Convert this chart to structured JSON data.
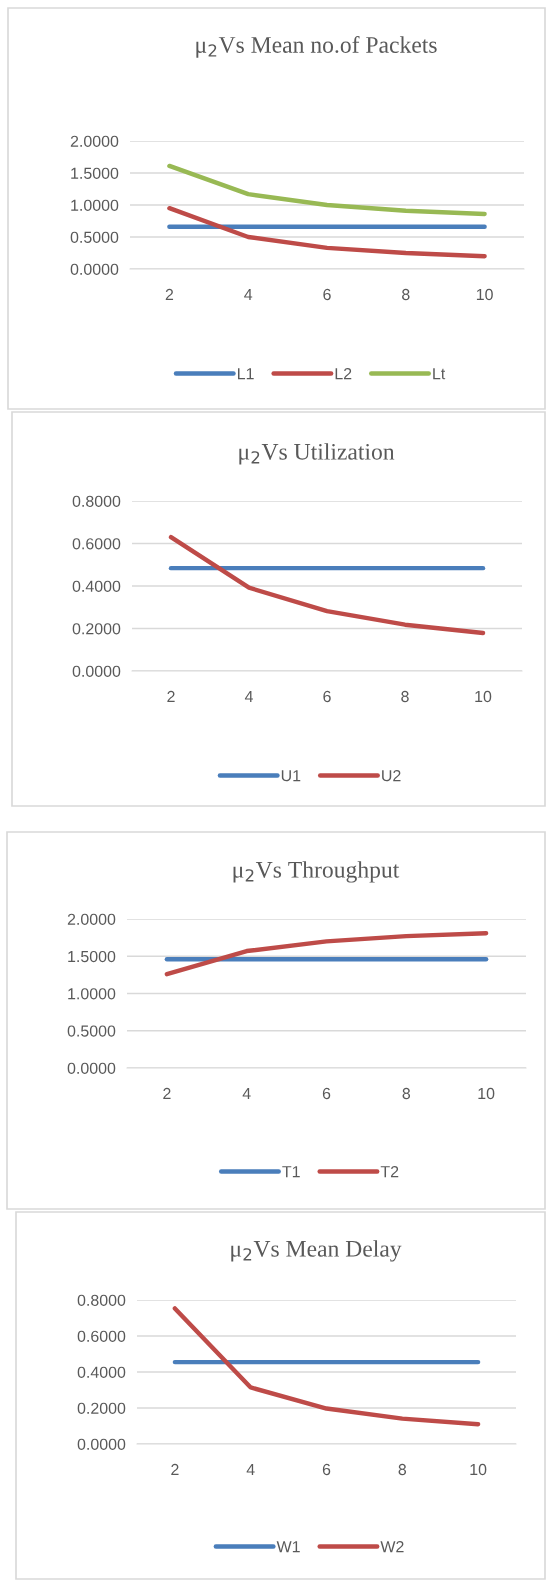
{
  "chart_data": [
    {
      "type": "line",
      "title": "μ$_{2}$Vs Mean no.of Packets",
      "categories": [
        "2",
        "4",
        "6",
        "8",
        "10"
      ],
      "ylim": [
        0,
        2
      ],
      "yticks": [
        {
          "value": 0,
          "label": "0.0000"
        },
        {
          "value": 0.5,
          "label": "0.5000"
        },
        {
          "value": 1,
          "label": "1.0000"
        },
        {
          "value": 1.5,
          "label": "1.5000"
        },
        {
          "value": 2,
          "label": "2.0000"
        }
      ],
      "grid": "y",
      "legend": "bottom",
      "marker": "none",
      "line_style": "solid",
      "series": [
        {
          "name": "L1",
          "color": "#4a7ebb",
          "values": [
            0.66,
            0.66,
            0.66,
            0.66,
            0.66
          ]
        },
        {
          "name": "L2",
          "color": "#be4b48",
          "values": [
            0.95,
            0.5,
            0.33,
            0.25,
            0.2
          ]
        },
        {
          "name": "Lt",
          "color": "#98b954",
          "values": [
            1.61,
            1.17,
            1.0,
            0.91,
            0.86
          ]
        }
      ]
    },
    {
      "type": "line",
      "title": "μ$_{2}$Vs Utilization",
      "categories": [
        "2",
        "4",
        "6",
        "8",
        "10"
      ],
      "ylim": [
        0,
        0.8
      ],
      "yticks": [
        {
          "value": 0,
          "label": "0.0000"
        },
        {
          "value": 0.2,
          "label": "0.2000"
        },
        {
          "value": 0.4,
          "label": "0.4000"
        },
        {
          "value": 0.6,
          "label": "0.6000"
        },
        {
          "value": 0.8,
          "label": "0.8000"
        }
      ],
      "grid": "y",
      "legend": "bottom",
      "marker": "none",
      "line_style": "solid",
      "series": [
        {
          "name": "U1",
          "color": "#4a7ebb",
          "values": [
            0.484,
            0.484,
            0.484,
            0.484,
            0.484
          ]
        },
        {
          "name": "U2",
          "color": "#be4b48",
          "values": [
            0.63,
            0.392,
            0.282,
            0.218,
            0.179
          ]
        }
      ]
    },
    {
      "type": "line",
      "title": "μ$_{2}$Vs Throughput",
      "categories": [
        "2",
        "4",
        "6",
        "8",
        "10"
      ],
      "ylim": [
        0,
        2
      ],
      "yticks": [
        {
          "value": 0,
          "label": "0.0000"
        },
        {
          "value": 0.5,
          "label": "0.5000"
        },
        {
          "value": 1,
          "label": "1.0000"
        },
        {
          "value": 1.5,
          "label": "1.5000"
        },
        {
          "value": 2,
          "label": "2.0000"
        }
      ],
      "grid": "y",
      "legend": "bottom",
      "marker": "none",
      "line_style": "solid",
      "series": [
        {
          "name": "T1",
          "color": "#4a7ebb",
          "values": [
            1.46,
            1.46,
            1.46,
            1.46,
            1.46
          ]
        },
        {
          "name": "T2",
          "color": "#be4b48",
          "values": [
            1.26,
            1.57,
            1.7,
            1.77,
            1.81
          ]
        }
      ]
    },
    {
      "type": "line",
      "title": "μ$_{2}$Vs Mean Delay",
      "categories": [
        "2",
        "4",
        "6",
        "8",
        "10"
      ],
      "ylim": [
        0,
        0.8
      ],
      "yticks": [
        {
          "value": 0,
          "label": "0.0000"
        },
        {
          "value": 0.2,
          "label": "0.2000"
        },
        {
          "value": 0.4,
          "label": "0.4000"
        },
        {
          "value": 0.6,
          "label": "0.6000"
        },
        {
          "value": 0.8,
          "label": "0.8000"
        }
      ],
      "grid": "y",
      "legend": "bottom",
      "marker": "none",
      "line_style": "solid",
      "series": [
        {
          "name": "W1",
          "color": "#4a7ebb",
          "values": [
            0.455,
            0.455,
            0.455,
            0.455,
            0.455
          ]
        },
        {
          "name": "W2",
          "color": "#be4b48",
          "values": [
            0.753,
            0.314,
            0.197,
            0.141,
            0.11
          ]
        }
      ]
    }
  ]
}
